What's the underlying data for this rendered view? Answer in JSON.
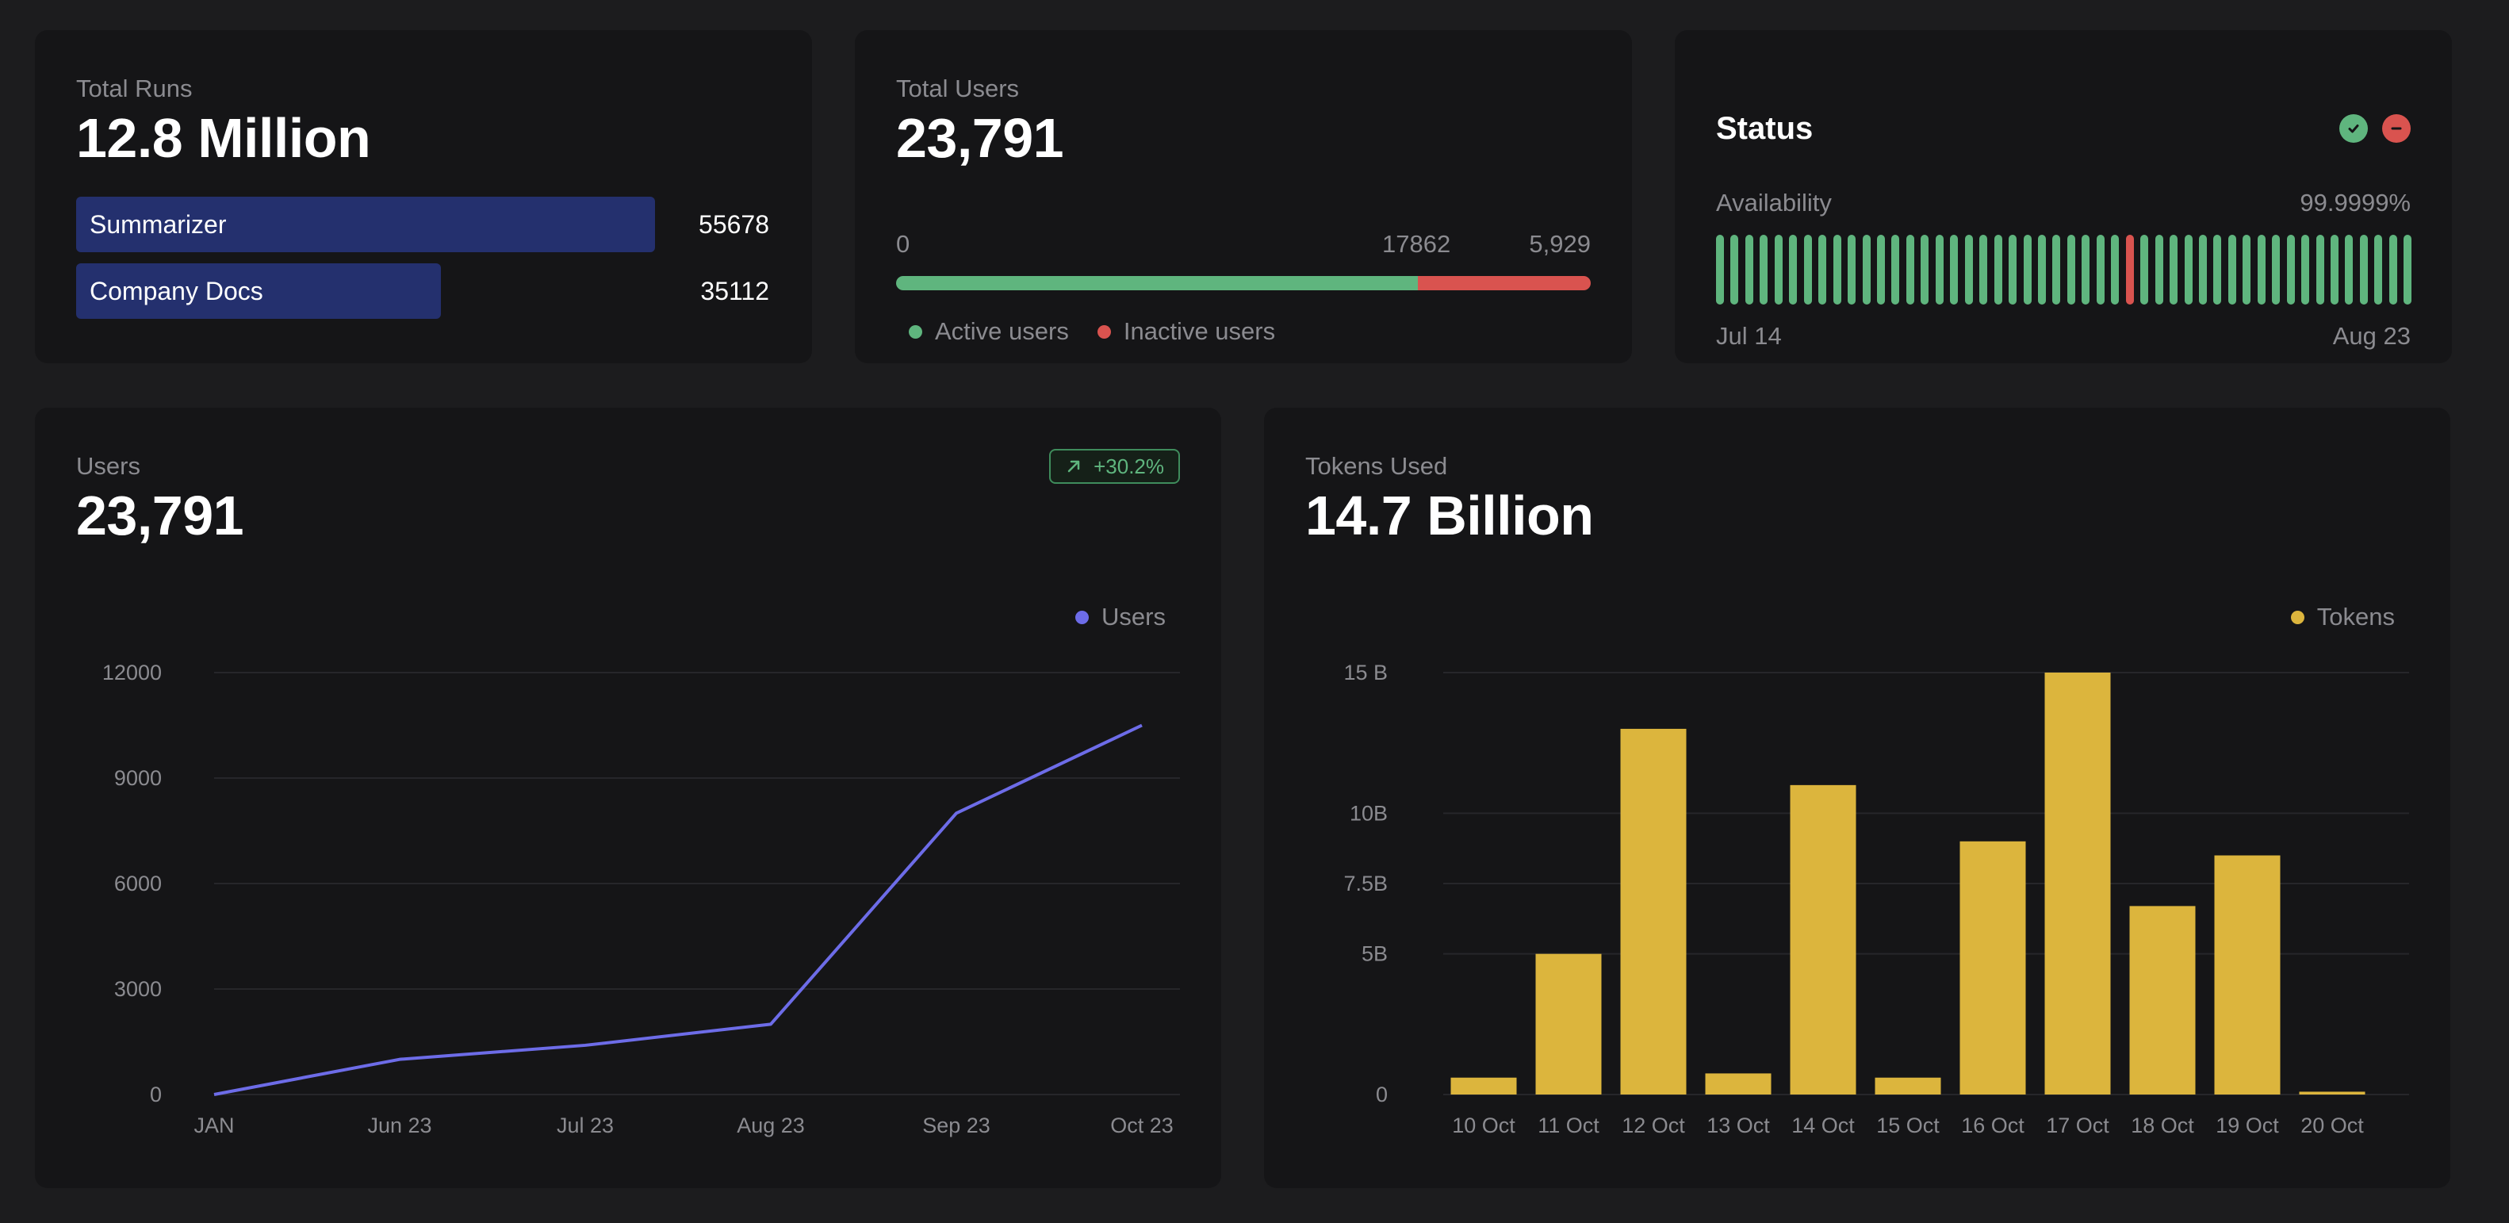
{
  "colors": {
    "background": "#1c1c1e",
    "card": "#151517",
    "run_bar": "#24306e",
    "active": "#5fb57e",
    "inactive": "#d9534f",
    "line_series": "#6d6ce8",
    "bar_series": "#dcb53d"
  },
  "runs": {
    "label": "Total Runs",
    "value": "12.8 Million",
    "items": [
      {
        "name": "Summarizer",
        "value": 55678
      },
      {
        "name": "Company Docs",
        "value": 35112
      }
    ]
  },
  "total_users": {
    "label": "Total Users",
    "value": "23,791",
    "scale_start": "0",
    "active_count": "17862",
    "inactive_count": "5,929",
    "active_fraction": 0.7508,
    "legend_active": "Active users",
    "legend_inactive": "Inactive users"
  },
  "status": {
    "title": "Status",
    "icons": [
      "check-circle-icon",
      "minus-circle-icon"
    ],
    "availability_label": "Availability",
    "availability_value": "99.9999%",
    "date_start": "Jul 14",
    "date_end": "Aug 23",
    "uptime_ticks": 48,
    "down_tick_index": 28
  },
  "users_panel": {
    "label": "Users",
    "value": "23,791",
    "badge": "+30.2%",
    "badge_icon": "arrow-up-right-icon"
  },
  "tokens_panel": {
    "label": "Tokens Used",
    "value": "14.7 Billion"
  },
  "chart_data": [
    {
      "type": "line",
      "x": [
        "JAN",
        "Jun 23",
        "Jul 23",
        "Aug 23",
        "Sep 23",
        "Oct 23"
      ],
      "series": [
        {
          "name": "Users",
          "values": [
            0,
            1000,
            1400,
            2000,
            8000,
            10500
          ]
        }
      ],
      "yticks": [
        "0",
        "3000",
        "6000",
        "9000",
        "12000"
      ],
      "ylim": [
        0,
        12000
      ],
      "grid": true,
      "legend": "top-right"
    },
    {
      "type": "bar",
      "categories": [
        "10 Oct",
        "11 Oct",
        "12 Oct",
        "13 Oct",
        "14 Oct",
        "15 Oct",
        "16 Oct",
        "17 Oct",
        "18 Oct",
        "19 Oct",
        "20 Oct"
      ],
      "series": [
        {
          "name": "Tokens",
          "values": [
            0.6,
            5,
            13,
            0.75,
            11,
            0.6,
            9,
            15,
            6.7,
            8.5,
            0.1
          ]
        }
      ],
      "yticks": [
        "0",
        "5B",
        "7.5B",
        "10B",
        "15 B"
      ],
      "ytick_values": [
        0,
        5,
        7.5,
        10,
        15
      ],
      "ylim": [
        0,
        15
      ],
      "unit": "billions",
      "grid": true,
      "legend": "top-right"
    }
  ]
}
